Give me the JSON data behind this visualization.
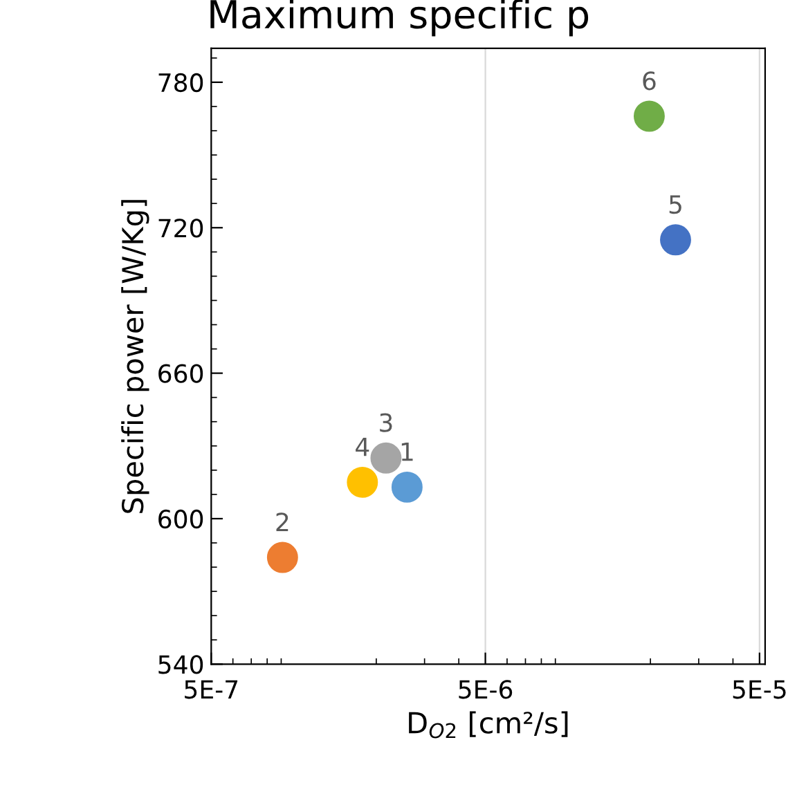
{
  "chart_data": {
    "type": "scatter",
    "title": "Maximum specific p",
    "xlabel": "D$_{O2}$ [cm²/s]",
    "ylabel": "Specific power [W/Kg]",
    "x": [
      2.59e-06,
      9.1e-07,
      2.17e-06,
      1.78e-06,
      2.47e-05,
      1.98e-05
    ],
    "values": [
      613,
      584,
      625,
      615,
      715,
      766
    ],
    "colors": [
      "#5b9bd5",
      "#ed7d31",
      "#a5a5a5",
      "#ffc000",
      "#4472c4",
      "#70ad47"
    ],
    "annotations": [
      {
        "text": "1",
        "x": 2.59e-06,
        "y": 613
      },
      {
        "text": "2",
        "x": 9.1e-07,
        "y": 584
      },
      {
        "text": "3",
        "x": 2.17e-06,
        "y": 625
      },
      {
        "text": "4",
        "x": 1.78e-06,
        "y": 615
      },
      {
        "text": "5",
        "x": 2.47e-05,
        "y": 715
      },
      {
        "text": "6",
        "x": 1.98e-05,
        "y": 766
      }
    ],
    "log": "x",
    "xlim": [
      5e-07,
      5.24e-05
    ],
    "xticks": [
      {
        "value": 5e-07,
        "label": "5E-7"
      },
      {
        "value": 5e-06,
        "label": "5E-6"
      },
      {
        "value": 5e-05,
        "label": "5E-5"
      }
    ],
    "ylim": [
      540,
      794
    ],
    "yticks": [
      540,
      600,
      660,
      720,
      780
    ],
    "grid": "x",
    "marker": "circle"
  }
}
